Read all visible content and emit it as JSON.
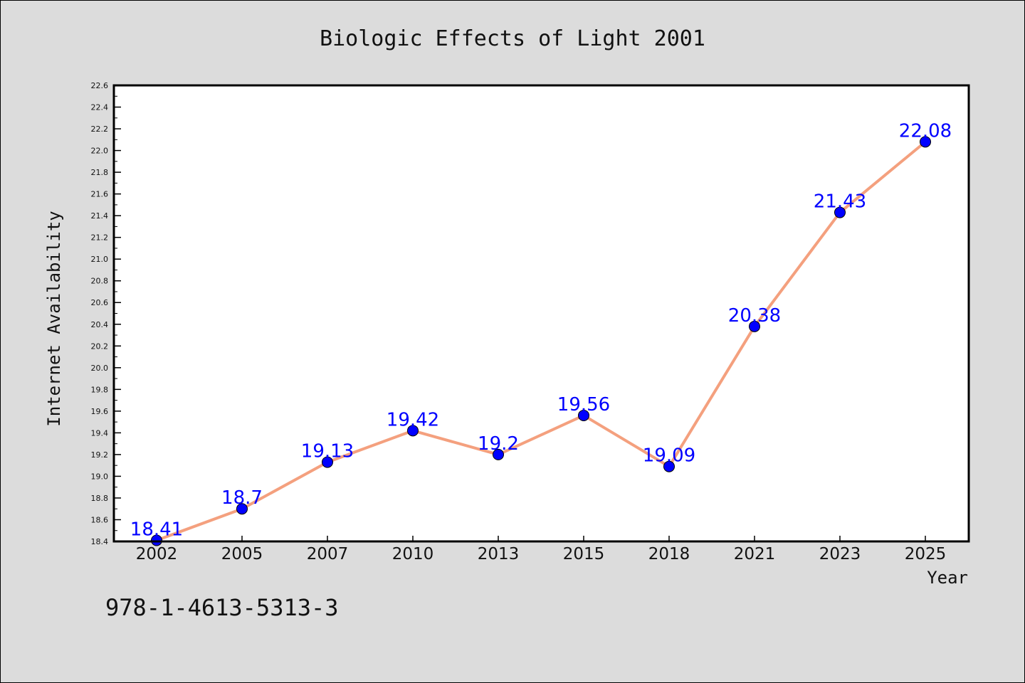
{
  "chart_data": {
    "type": "line",
    "title": "Biologic Effects of Light 2001",
    "xlabel": "Year",
    "ylabel": "Internet Availability",
    "categories": [
      "2002",
      "2005",
      "2007",
      "2010",
      "2013",
      "2015",
      "2018",
      "2021",
      "2023",
      "2025"
    ],
    "values": [
      18.41,
      18.7,
      19.13,
      19.42,
      19.2,
      19.56,
      19.09,
      20.38,
      21.43,
      22.08
    ],
    "data_labels": [
      "18.41",
      "18.7",
      "19.13",
      "19.42",
      "19.2",
      "19.56",
      "19.09",
      "20.38",
      "21.43",
      "22.08"
    ],
    "ylim": [
      18.4,
      22.6
    ],
    "yticks": [
      "18.4",
      "18.6",
      "18.8",
      "19.0",
      "19.2",
      "19.4",
      "19.6",
      "19.8",
      "20.0",
      "20.2",
      "20.4",
      "20.6",
      "20.8",
      "21.0",
      "21.2",
      "21.4",
      "21.6",
      "21.8",
      "22.0",
      "22.2",
      "22.4",
      "22.6"
    ],
    "grid": false,
    "line_color": "#f4a07e",
    "marker_color": "#0000ff",
    "label_color": "#0000ff"
  },
  "footer": {
    "isbn": "978-1-4613-5313-3"
  }
}
